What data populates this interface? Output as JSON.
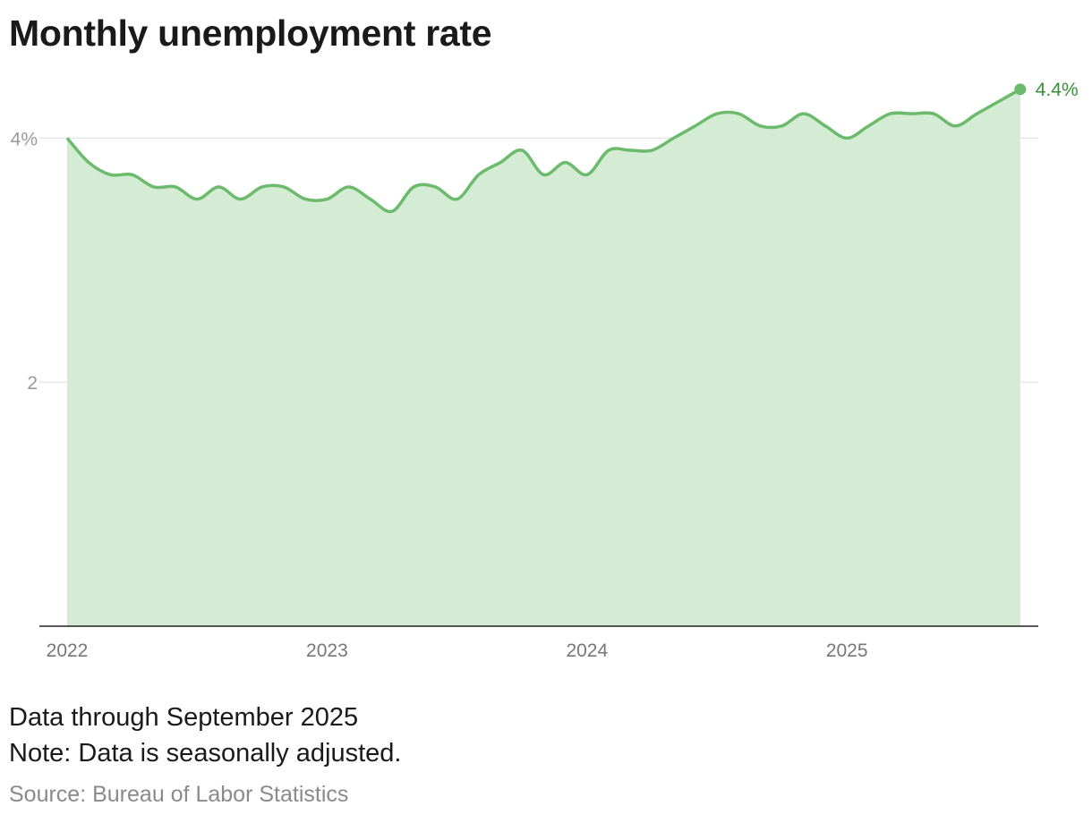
{
  "title": "Monthly unemployment rate",
  "notes": {
    "data_through": "Data through September 2025",
    "note": "Note: Data is seasonally adjusted.",
    "source": "Source: Bureau of Labor Statistics"
  },
  "colors": {
    "line": "#6cbb6c",
    "fill": "#d4ebd4",
    "label": "#3c8c3c",
    "grid": "#e2e2e2",
    "axis": "#222222",
    "tick": "#9a9a9a"
  },
  "chart_data": {
    "type": "area",
    "title": "Monthly unemployment rate",
    "xlabel": "",
    "ylabel": "",
    "x_start": "2022-01",
    "x_end": "2025-09",
    "x_ticks": [
      "2022",
      "2023",
      "2024",
      "2025"
    ],
    "y_ticks": [
      {
        "value": 4,
        "label": "4%"
      },
      {
        "value": 2,
        "label": "2"
      }
    ],
    "ylim": [
      0,
      4.4
    ],
    "grid": true,
    "end_label": "4.4%",
    "values": [
      4.0,
      3.8,
      3.7,
      3.7,
      3.6,
      3.6,
      3.5,
      3.6,
      3.5,
      3.6,
      3.6,
      3.5,
      3.5,
      3.6,
      3.5,
      3.4,
      3.6,
      3.6,
      3.5,
      3.7,
      3.8,
      3.9,
      3.7,
      3.8,
      3.7,
      3.9,
      3.9,
      3.9,
      4.0,
      4.1,
      4.2,
      4.2,
      4.1,
      4.1,
      4.2,
      4.1,
      4.0,
      4.1,
      4.2,
      4.2,
      4.2,
      4.1,
      4.2,
      4.3,
      4.4
    ]
  }
}
